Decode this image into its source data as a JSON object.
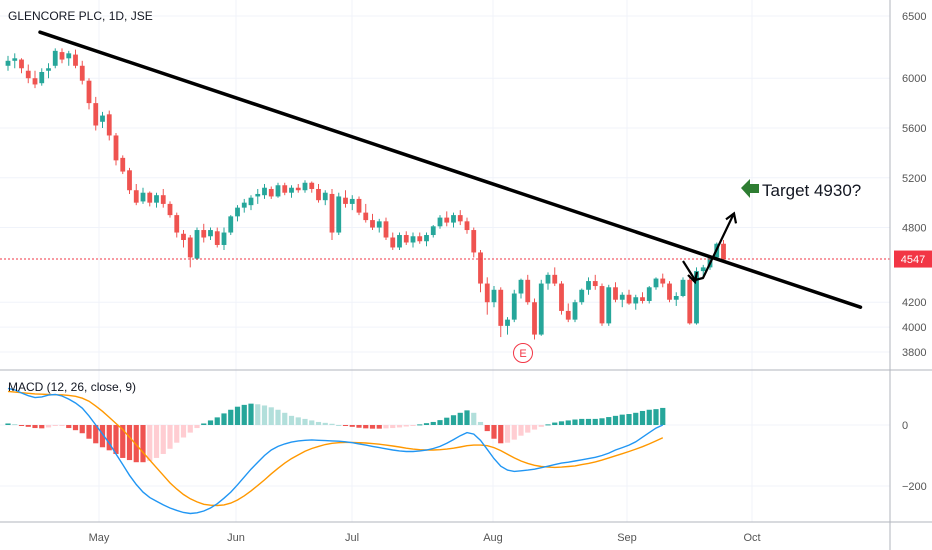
{
  "header": {
    "symbol_line": "GLENCORE PLC, 1D, JSE"
  },
  "macd_label": "MACD (12, 26, close, 9)",
  "annotations": {
    "target_text": "Target 4930?",
    "earnings_marker": "E"
  },
  "price_label": "4547",
  "colors": {
    "up": "#26a69a",
    "down": "#ef5350",
    "hist_up_strong": "#26a69a",
    "hist_up_weak": "#b2dfdb",
    "hist_down_strong": "#ef5350",
    "hist_down_weak": "#ffcdd2",
    "macd_line": "#2196f3",
    "signal_line": "#ff9800",
    "trendline": "#000000",
    "target_arrow": "#2e7d32",
    "price_marker": "#f23645",
    "grid": "#f0f3fa",
    "axis_text": "#555555"
  },
  "chart_data": [
    {
      "type": "candlestick",
      "title": "GLENCORE PLC, 1D, JSE",
      "xlabel": "",
      "ylabel": "",
      "x_ticks": [
        "May",
        "Jun",
        "Jul",
        "Aug",
        "Sep",
        "Oct"
      ],
      "y_ticks": [
        6500,
        6000,
        5600,
        5200,
        4800,
        4547,
        4200,
        4000,
        3800
      ],
      "ylim": [
        3650,
        6580
      ],
      "last_price": 4547,
      "target": 4930,
      "trendline": [
        {
          "t": 0,
          "v": 6370
        },
        {
          "t": 126,
          "v": 4160
        }
      ],
      "candles": [
        [
          6100,
          6180,
          6060,
          6140
        ],
        [
          6140,
          6200,
          6080,
          6160
        ],
        [
          6150,
          6160,
          6040,
          6080
        ],
        [
          6060,
          6110,
          5960,
          6000
        ],
        [
          6000,
          6060,
          5920,
          5950
        ],
        [
          5960,
          6080,
          5940,
          6050
        ],
        [
          6060,
          6120,
          6000,
          6080
        ],
        [
          6100,
          6240,
          6080,
          6220
        ],
        [
          6210,
          6240,
          6120,
          6150
        ],
        [
          6160,
          6220,
          6100,
          6200
        ],
        [
          6190,
          6230,
          6080,
          6100
        ],
        [
          6100,
          6140,
          5950,
          5980
        ],
        [
          5980,
          6000,
          5750,
          5800
        ],
        [
          5800,
          5850,
          5580,
          5620
        ],
        [
          5650,
          5730,
          5600,
          5700
        ],
        [
          5710,
          5740,
          5500,
          5540
        ],
        [
          5540,
          5560,
          5300,
          5340
        ],
        [
          5360,
          5380,
          5230,
          5250
        ],
        [
          5260,
          5280,
          5070,
          5100
        ],
        [
          5100,
          5150,
          4980,
          5000
        ],
        [
          5010,
          5120,
          4990,
          5080
        ],
        [
          5080,
          5090,
          4970,
          5000
        ],
        [
          5000,
          5080,
          4960,
          5060
        ],
        [
          5060,
          5110,
          4960,
          4990
        ],
        [
          4990,
          5010,
          4880,
          4900
        ],
        [
          4900,
          4920,
          4720,
          4760
        ],
        [
          4750,
          4780,
          4640,
          4700
        ],
        [
          4720,
          4740,
          4480,
          4560
        ],
        [
          4550,
          4800,
          4540,
          4780
        ],
        [
          4780,
          4830,
          4680,
          4720
        ],
        [
          4730,
          4800,
          4700,
          4780
        ],
        [
          4770,
          4800,
          4640,
          4660
        ],
        [
          4660,
          4800,
          4620,
          4760
        ],
        [
          4760,
          4900,
          4740,
          4890
        ],
        [
          4890,
          4980,
          4850,
          4960
        ],
        [
          4960,
          5030,
          4920,
          5000
        ],
        [
          4980,
          5060,
          4940,
          5040
        ],
        [
          5050,
          5110,
          4990,
          5070
        ],
        [
          5060,
          5150,
          5030,
          5120
        ],
        [
          5110,
          5130,
          5030,
          5050
        ],
        [
          5050,
          5160,
          5040,
          5140
        ],
        [
          5140,
          5160,
          5060,
          5080
        ],
        [
          5080,
          5140,
          5040,
          5120
        ],
        [
          5120,
          5150,
          5080,
          5100
        ],
        [
          5100,
          5180,
          5080,
          5160
        ],
        [
          5160,
          5170,
          5080,
          5110
        ],
        [
          5110,
          5150,
          5000,
          5020
        ],
        [
          5020,
          5100,
          4980,
          5080
        ],
        [
          5070,
          5110,
          4700,
          4760
        ],
        [
          4760,
          5080,
          4740,
          5050
        ],
        [
          5040,
          5100,
          4960,
          4990
        ],
        [
          4990,
          5060,
          4940,
          5030
        ],
        [
          5030,
          5050,
          4900,
          4920
        ],
        [
          4920,
          4990,
          4840,
          4860
        ],
        [
          4860,
          4910,
          4780,
          4800
        ],
        [
          4800,
          4870,
          4760,
          4850
        ],
        [
          4850,
          4880,
          4700,
          4720
        ],
        [
          4720,
          4760,
          4620,
          4640
        ],
        [
          4640,
          4760,
          4620,
          4740
        ],
        [
          4740,
          4770,
          4660,
          4680
        ],
        [
          4680,
          4760,
          4640,
          4730
        ],
        [
          4730,
          4760,
          4670,
          4690
        ],
        [
          4690,
          4760,
          4650,
          4740
        ],
        [
          4740,
          4820,
          4720,
          4810
        ],
        [
          4810,
          4900,
          4790,
          4880
        ],
        [
          4880,
          4930,
          4810,
          4840
        ],
        [
          4840,
          4920,
          4800,
          4900
        ],
        [
          4900,
          4940,
          4820,
          4850
        ],
        [
          4850,
          4880,
          4750,
          4780
        ],
        [
          4780,
          4800,
          4560,
          4600
        ],
        [
          4600,
          4620,
          4280,
          4350
        ],
        [
          4350,
          4400,
          4100,
          4200
        ],
        [
          4200,
          4330,
          4160,
          4300
        ],
        [
          4300,
          4320,
          3920,
          4010
        ],
        [
          4010,
          4080,
          3940,
          4060
        ],
        [
          4060,
          4300,
          4040,
          4270
        ],
        [
          4270,
          4390,
          4230,
          4380
        ],
        [
          4380,
          4420,
          4180,
          4200
        ],
        [
          4200,
          4230,
          3900,
          3940
        ],
        [
          3940,
          4380,
          3930,
          4350
        ],
        [
          4350,
          4440,
          4300,
          4420
        ],
        [
          4420,
          4480,
          4330,
          4350
        ],
        [
          4350,
          4370,
          4100,
          4130
        ],
        [
          4130,
          4190,
          4040,
          4060
        ],
        [
          4060,
          4220,
          4040,
          4200
        ],
        [
          4200,
          4310,
          4180,
          4300
        ],
        [
          4300,
          4400,
          4260,
          4370
        ],
        [
          4370,
          4420,
          4300,
          4330
        ],
        [
          4330,
          4350,
          4010,
          4030
        ],
        [
          4030,
          4340,
          4010,
          4320
        ],
        [
          4320,
          4360,
          4200,
          4220
        ],
        [
          4220,
          4280,
          4160,
          4260
        ],
        [
          4260,
          4300,
          4180,
          4190
        ],
        [
          4190,
          4260,
          4140,
          4240
        ],
        [
          4240,
          4280,
          4190,
          4210
        ],
        [
          4210,
          4330,
          4190,
          4320
        ],
        [
          4320,
          4400,
          4300,
          4390
        ],
        [
          4390,
          4430,
          4320,
          4350
        ],
        [
          4350,
          4370,
          4200,
          4220
        ],
        [
          4220,
          4280,
          4170,
          4250
        ],
        [
          4250,
          4400,
          4240,
          4380
        ],
        [
          4380,
          4420,
          4020,
          4030
        ],
        [
          4030,
          4480,
          4020,
          4450
        ],
        [
          4450,
          4500,
          4400,
          4480
        ],
        [
          4480,
          4570,
          4460,
          4560
        ],
        [
          4560,
          4680,
          4540,
          4670
        ],
        [
          4670,
          4700,
          4520,
          4547
        ]
      ]
    },
    {
      "type": "line",
      "title": "MACD (12, 26, close, 9)",
      "xlabel": "",
      "ylabel": "",
      "y_ticks": [
        0,
        -200
      ],
      "ylim": [
        -330,
        150
      ],
      "series": [
        {
          "name": "MACD",
          "values": [
            120,
            115,
            105,
            96,
            90,
            92,
            98,
            100,
            95,
            85,
            72,
            55,
            30,
            0,
            -30,
            -60,
            -95,
            -130,
            -165,
            -195,
            -220,
            -238,
            -250,
            -262,
            -272,
            -280,
            -287,
            -290,
            -288,
            -282,
            -272,
            -258,
            -240,
            -220,
            -196,
            -170,
            -145,
            -122,
            -100,
            -82,
            -70,
            -62,
            -56,
            -52,
            -50,
            -49,
            -50,
            -51,
            -52,
            -53,
            -55,
            -58,
            -62,
            -66,
            -70,
            -74,
            -78,
            -82,
            -85,
            -87,
            -87,
            -85,
            -82,
            -77,
            -70,
            -60,
            -48,
            -35,
            -25,
            -30,
            -50,
            -80,
            -110,
            -135,
            -148,
            -152,
            -150,
            -148,
            -145,
            -140,
            -135,
            -130,
            -125,
            -122,
            -118,
            -114,
            -110,
            -106,
            -100,
            -92,
            -82,
            -74,
            -66,
            -55,
            -40,
            -25,
            -10,
            0
          ]
        },
        {
          "name": "Signal",
          "values": [
            110,
            108,
            106,
            104,
            102,
            101,
            100,
            99,
            99,
            97,
            94,
            88,
            78,
            62,
            45,
            25,
            5,
            -15,
            -40,
            -65,
            -90,
            -115,
            -140,
            -165,
            -190,
            -210,
            -228,
            -242,
            -252,
            -260,
            -263,
            -264,
            -262,
            -256,
            -246,
            -232,
            -216,
            -198,
            -180,
            -160,
            -142,
            -125,
            -110,
            -98,
            -86,
            -77,
            -70,
            -64,
            -60,
            -58,
            -57,
            -57,
            -58,
            -59,
            -61,
            -63,
            -66,
            -69,
            -72,
            -76,
            -79,
            -81,
            -82,
            -82,
            -81,
            -79,
            -76,
            -72,
            -68,
            -66,
            -66,
            -68,
            -74,
            -84,
            -96,
            -108,
            -118,
            -126,
            -132,
            -136,
            -138,
            -139,
            -138,
            -136,
            -134,
            -130,
            -126,
            -121,
            -115,
            -108,
            -101,
            -94,
            -87,
            -79,
            -71,
            -62,
            -52,
            -42
          ]
        },
        {
          "name": "Histogram",
          "values": [
            5,
            3,
            -1,
            -6,
            -10,
            -11,
            -8,
            -3,
            -2,
            -10,
            -17,
            -27,
            -45,
            -60,
            -73,
            -83,
            -95,
            -108,
            -115,
            -122,
            -122,
            -118,
            -108,
            -95,
            -78,
            -58,
            -41,
            -25,
            -10,
            5,
            15,
            25,
            38,
            50,
            60,
            66,
            70,
            68,
            64,
            58,
            50,
            40,
            30,
            25,
            20,
            15,
            10,
            7,
            4,
            0,
            -3,
            -6,
            -9,
            -11,
            -12,
            -12,
            -11,
            -10,
            -8,
            -5,
            -2,
            2,
            6,
            10,
            16,
            24,
            32,
            40,
            48,
            40,
            10,
            -20,
            -45,
            -60,
            -58,
            -48,
            -35,
            -25,
            -15,
            -6,
            2,
            8,
            12,
            15,
            18,
            20,
            20,
            20,
            22,
            26,
            30,
            34,
            36,
            40,
            46,
            50,
            52,
            56
          ]
        }
      ]
    }
  ]
}
